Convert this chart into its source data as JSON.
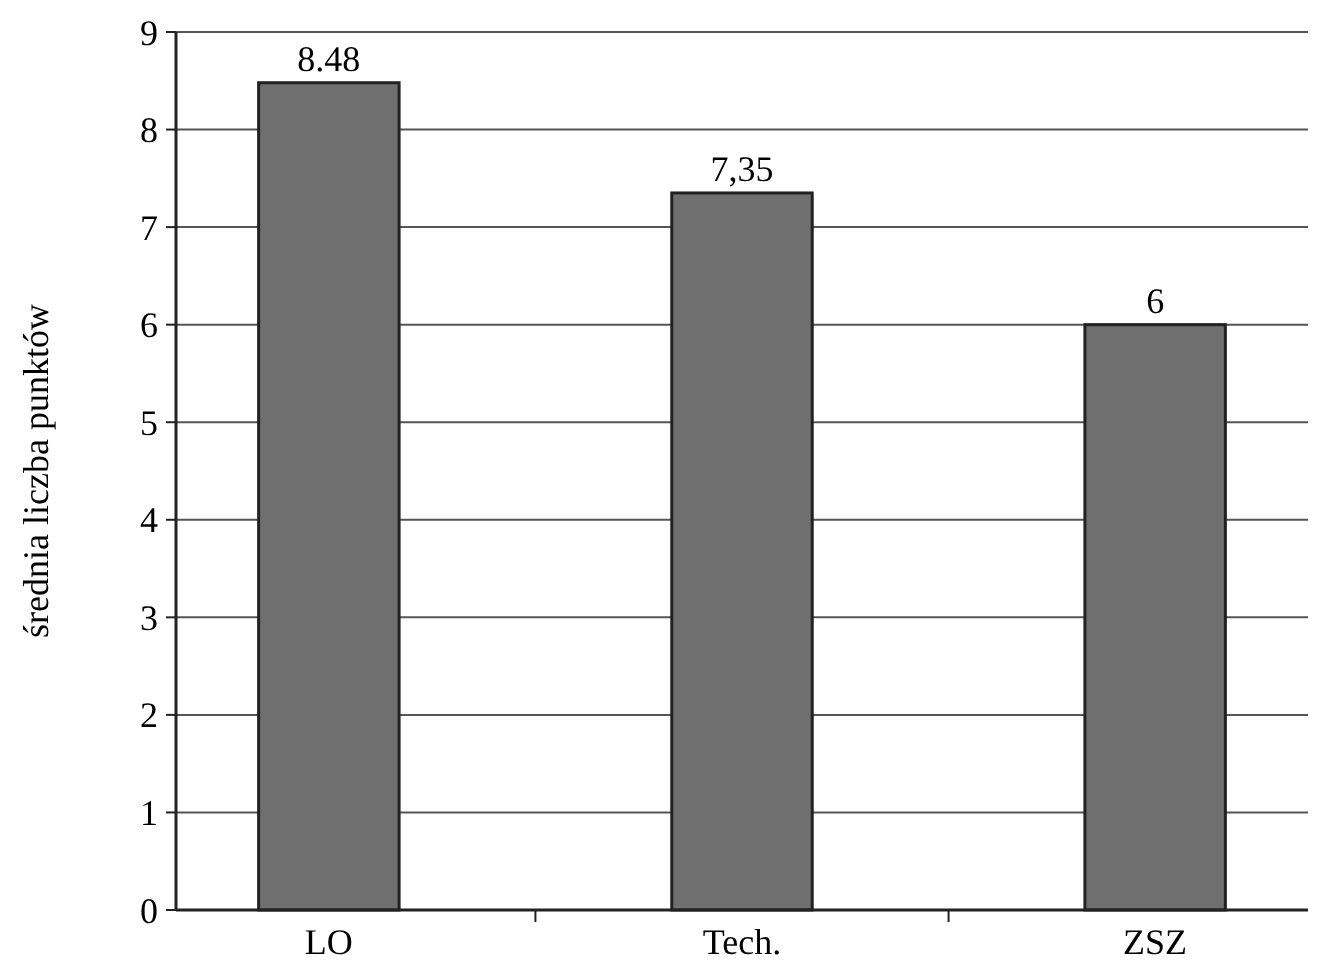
{
  "chart_data": {
    "type": "bar",
    "ylabel": "średnia liczba punktów",
    "categories": [
      "LO",
      "Tech.",
      "ZSZ"
    ],
    "values": [
      8.48,
      7.35,
      6
    ],
    "color": "#6f6f6f",
    "value_labels": [
      "8.48",
      "7,35",
      "6"
    ],
    "ylim": [
      0,
      9
    ],
    "yticks": [
      0,
      1,
      2,
      3,
      4,
      5,
      6,
      7,
      8,
      9
    ],
    "grid": "y"
  }
}
